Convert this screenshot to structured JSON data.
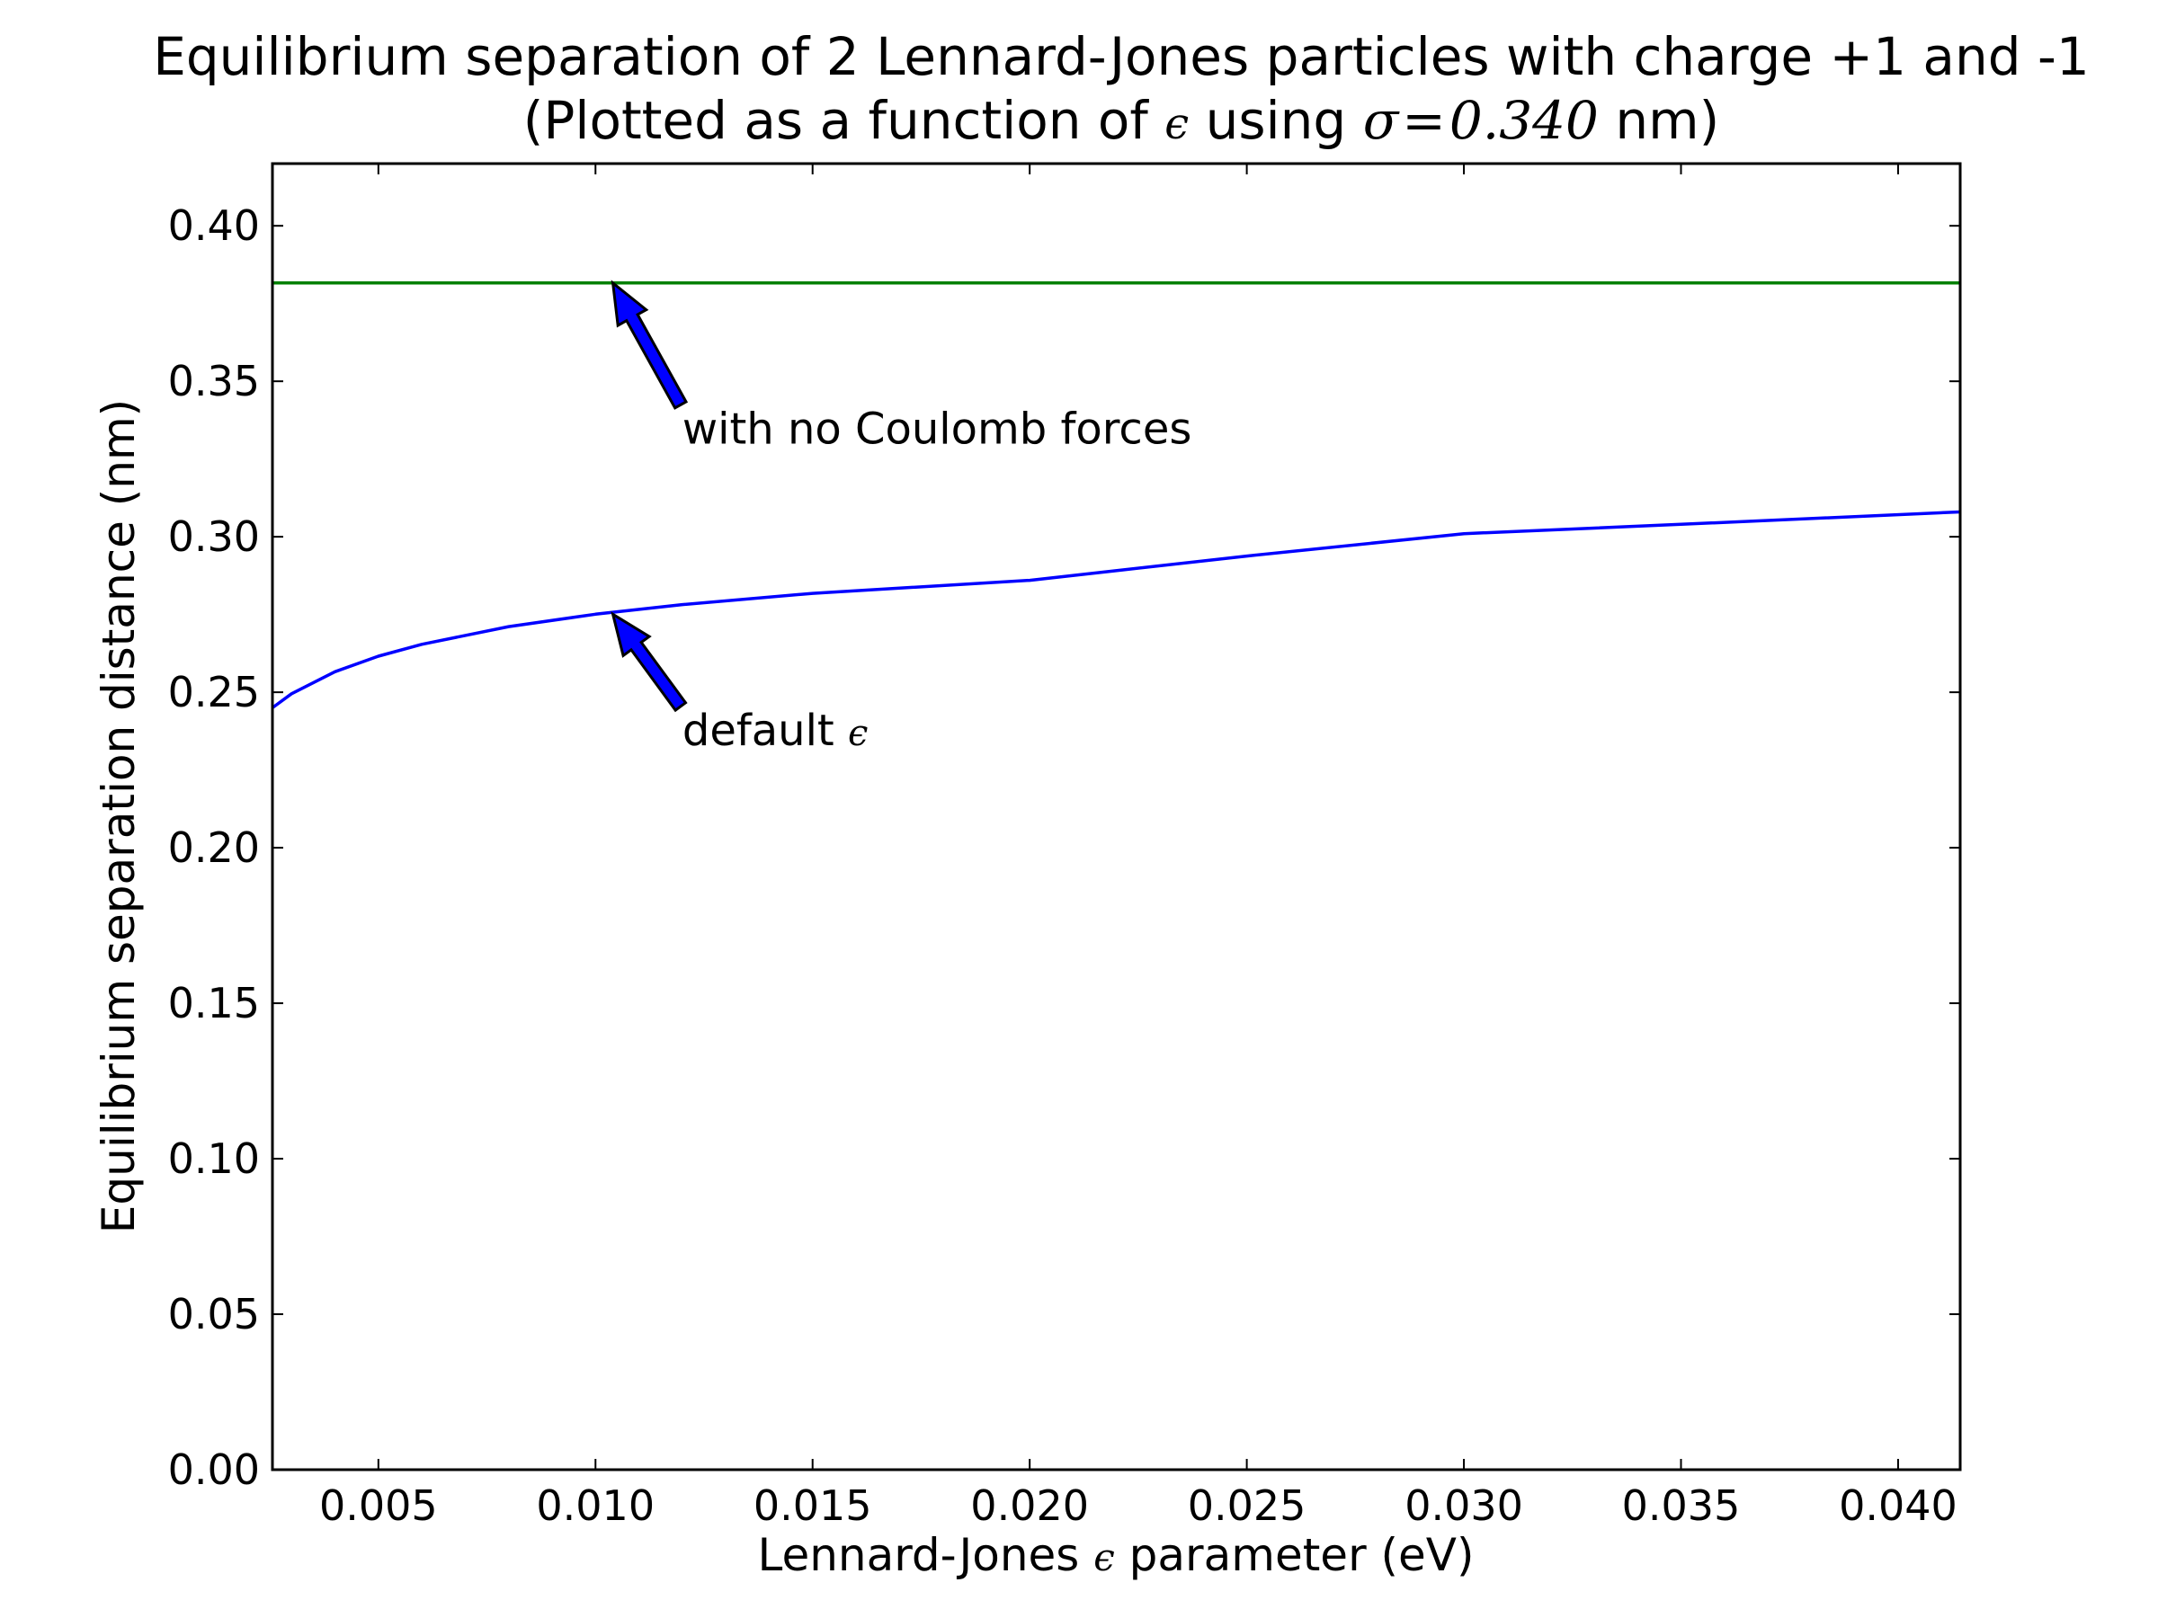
{
  "chart_data": {
    "type": "line",
    "title": "Equilibrium separation of 2 Lennard-Jones particles with charge +1 and -1",
    "subtitle": {
      "prefix": "(Plotted as a function of ",
      "eps": "ϵ",
      "middle": " using ",
      "sigma": "σ",
      "equals": "=",
      "sigma_value": "0.340",
      "suffix": " nm)"
    },
    "xlabel": {
      "prefix": "Lennard-Jones ",
      "eps": "ϵ",
      "suffix": " parameter (eV)"
    },
    "ylabel": "Equilibrium separation distance (nm)",
    "xlim": [
      0.00256,
      0.04143
    ],
    "ylim": [
      0.0,
      0.42
    ],
    "xticks": [
      0.005,
      0.01,
      0.015,
      0.02,
      0.025,
      0.03,
      0.035,
      0.04
    ],
    "xtick_labels": [
      "0.005",
      "0.010",
      "0.015",
      "0.020",
      "0.025",
      "0.030",
      "0.035",
      "0.040"
    ],
    "yticks": [
      0.0,
      0.05,
      0.1,
      0.15,
      0.2,
      0.25,
      0.3,
      0.35,
      0.4
    ],
    "ytick_labels": [
      "0.00",
      "0.05",
      "0.10",
      "0.15",
      "0.20",
      "0.25",
      "0.30",
      "0.35",
      "0.40"
    ],
    "grid": false,
    "series": [
      {
        "color": "#0000ff",
        "x": [
          0.00256,
          0.003,
          0.004,
          0.005,
          0.006,
          0.008,
          0.01,
          0.012,
          0.015,
          0.02,
          0.025,
          0.03,
          0.035,
          0.04143
        ],
        "y": [
          0.245,
          0.2495,
          0.2566,
          0.2616,
          0.2654,
          0.2711,
          0.2751,
          0.2782,
          0.2818,
          0.286,
          0.2938,
          0.301,
          0.304,
          0.308
        ]
      },
      {
        "color": "#008000",
        "x": [
          0.00256,
          0.04143
        ],
        "y": [
          0.3816,
          0.3816
        ]
      }
    ],
    "annotations": [
      {
        "text": "with no Coulomb forces",
        "xy": [
          0.0104,
          0.3816
        ],
        "xytext": [
          0.012,
          0.33
        ]
      },
      {
        "text_prefix": "default ",
        "text_eps": "ϵ",
        "xy": [
          0.0104,
          0.2751
        ],
        "xytext": [
          0.012,
          0.233
        ]
      }
    ],
    "arrow_color": "#0000ff"
  }
}
